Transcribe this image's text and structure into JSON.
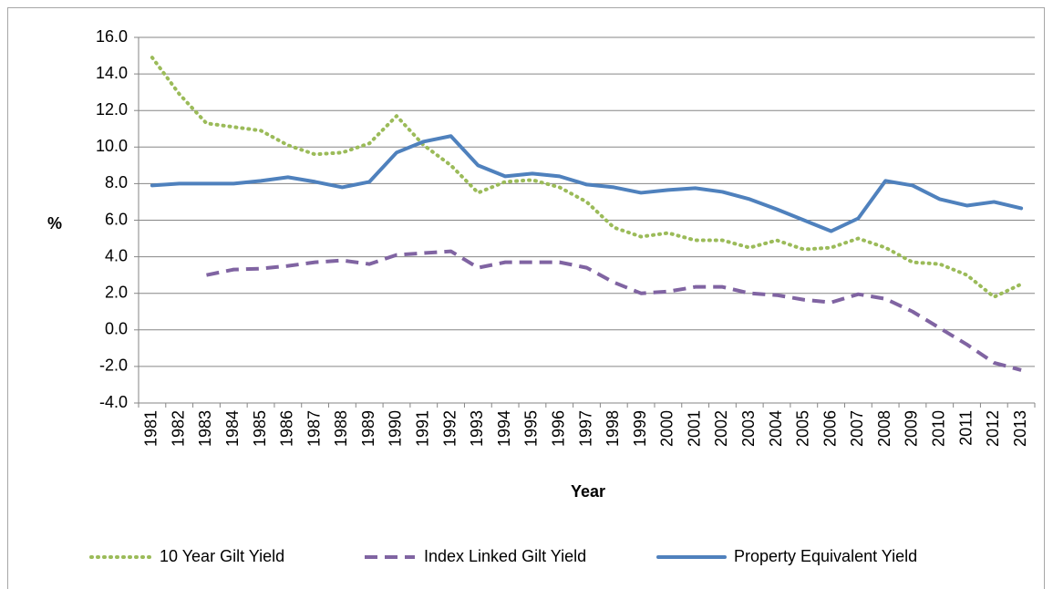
{
  "chart_data": {
    "type": "line",
    "x_label": "Year",
    "y_label": "%",
    "categories": [
      "1981",
      "1982",
      "1983",
      "1984",
      "1985",
      "1986",
      "1987",
      "1988",
      "1989",
      "1990",
      "1991",
      "1992",
      "1993",
      "1994",
      "1995",
      "1996",
      "1997",
      "1998",
      "1999",
      "2000",
      "2001",
      "2002",
      "2003",
      "2004",
      "2005",
      "2006",
      "2007",
      "2008",
      "2009",
      "2010",
      "2011",
      "2012",
      "2013"
    ],
    "series": [
      {
        "name": "10 Year Gilt Yield",
        "color": "#9bbb59",
        "dash": "dotted",
        "values": [
          14.9,
          12.9,
          11.3,
          11.1,
          10.9,
          10.1,
          9.6,
          9.7,
          10.2,
          11.7,
          10.1,
          9.0,
          7.5,
          8.1,
          8.2,
          7.8,
          7.0,
          5.6,
          5.1,
          5.3,
          4.9,
          4.9,
          4.5,
          4.9,
          4.4,
          4.5,
          5.0,
          4.5,
          3.7,
          3.6,
          3.0,
          1.8,
          2.5
        ]
      },
      {
        "name": "Index Linked Gilt Yield",
        "color": "#8064a2",
        "dash": "dashed",
        "values": [
          null,
          null,
          3.0,
          3.3,
          3.35,
          3.5,
          3.7,
          3.8,
          3.6,
          4.1,
          4.2,
          4.3,
          3.4,
          3.7,
          3.7,
          3.7,
          3.4,
          2.6,
          2.0,
          2.1,
          2.35,
          2.35,
          2.0,
          1.9,
          1.65,
          1.5,
          1.95,
          1.7,
          1.0,
          0.1,
          -0.8,
          -1.8,
          -2.2
        ]
      },
      {
        "name": "Property Equivalent Yield",
        "color": "#4f81bd",
        "dash": "solid",
        "values": [
          7.9,
          8.0,
          8.0,
          8.0,
          8.15,
          8.35,
          8.1,
          7.8,
          8.1,
          9.7,
          10.3,
          10.6,
          9.0,
          8.4,
          8.55,
          8.4,
          7.95,
          7.8,
          7.5,
          7.65,
          7.75,
          7.55,
          7.15,
          6.6,
          6.0,
          5.4,
          6.1,
          8.15,
          7.9,
          7.15,
          6.8,
          7.0,
          6.65
        ]
      }
    ],
    "ylim": [
      -4,
      16
    ],
    "yticks": [
      {
        "value": -4,
        "label": "-4.0"
      },
      {
        "value": -2,
        "label": "-2.0"
      },
      {
        "value": 0,
        "label": "0.0"
      },
      {
        "value": 2,
        "label": "2.0"
      },
      {
        "value": 4,
        "label": "4.0"
      },
      {
        "value": 6,
        "label": "6.0"
      },
      {
        "value": 8,
        "label": "8.0"
      },
      {
        "value": 10,
        "label": "10.0"
      },
      {
        "value": 12,
        "label": "12.0"
      },
      {
        "value": 14,
        "label": "14.0"
      },
      {
        "value": 16,
        "label": "16.0"
      }
    ],
    "grid": true,
    "legend": "bottom"
  }
}
